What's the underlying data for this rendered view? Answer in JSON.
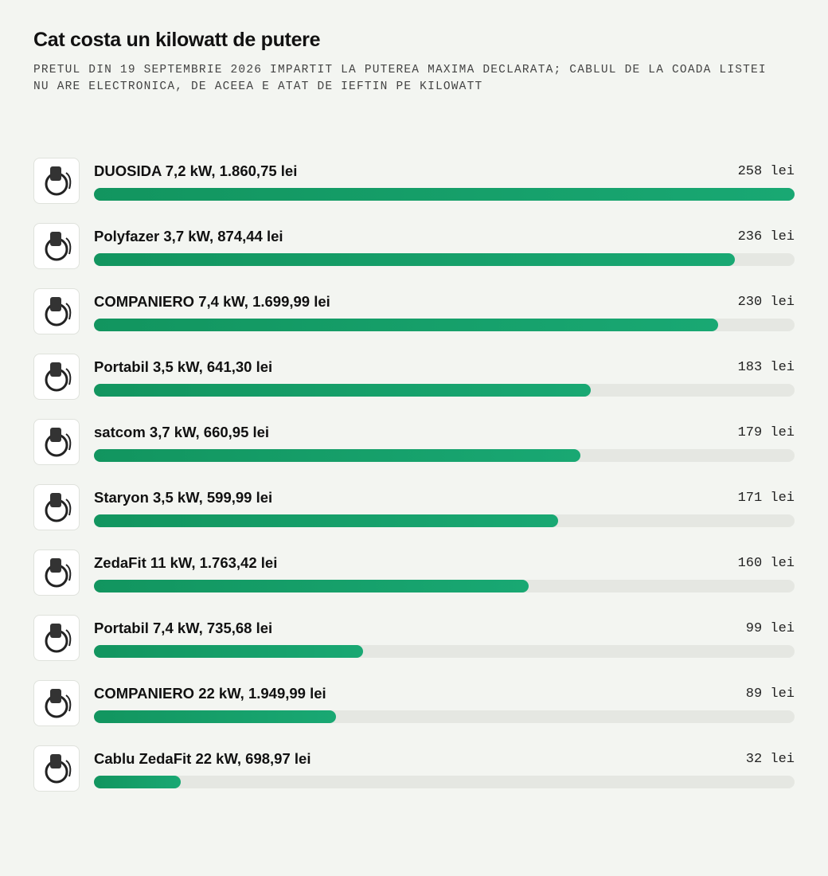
{
  "chart_data": {
    "type": "bar",
    "orientation": "horizontal",
    "title": "Cat costa un kilowatt de putere",
    "subtitle": "PRETUL DIN 19 SEPTEMBRIE 2026 IMPARTIT LA PUTEREA MAXIMA DECLARATA; CABLUL DE LA COADA LISTEI NU ARE ELECTRONICA, DE ACEEA E ATAT DE IEFTIN PE KILOWATT",
    "categories": [
      "DUOSIDA 7,2 kW, 1.860,75 lei",
      "Polyfazer 3,7 kW, 874,44 lei",
      "COMPANIERO 7,4 kW, 1.699,99 lei",
      "Portabil 3,5 kW, 641,30 lei",
      "satcom 3,7 kW, 660,95 lei",
      "Staryon 3,5 kW, 599,99 lei",
      "ZedaFit 11 kW, 1.763,42 lei",
      "Portabil 7,4 kW, 735,68 lei",
      "COMPANIERO 22 kW, 1.949,99 lei",
      "Cablu ZedaFit 22 kW, 698,97 lei"
    ],
    "values": [
      258,
      236,
      230,
      183,
      179,
      171,
      160,
      99,
      89,
      32
    ],
    "value_labels": [
      "258 lei",
      "236 lei",
      "230 lei",
      "183 lei",
      "179 lei",
      "171 lei",
      "160 lei",
      "99 lei",
      "89 lei",
      "32 lei"
    ],
    "color": "#12955f"
  }
}
